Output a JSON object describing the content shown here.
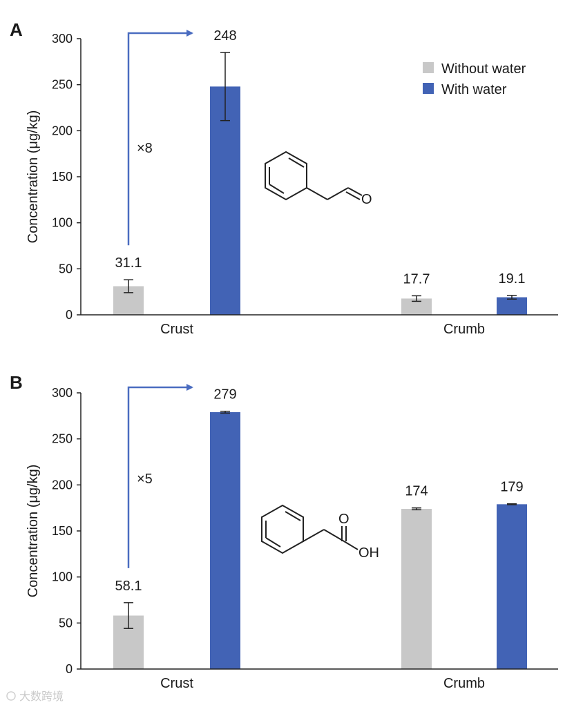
{
  "colors": {
    "without_water": "#c8c8c8",
    "with_water": "#4263b5",
    "arrow": "#4a6cc0",
    "axis": "#222222"
  },
  "legend": {
    "items": [
      {
        "label": "Without water",
        "color": "#c8c8c8"
      },
      {
        "label": "With water",
        "color": "#4263b5"
      }
    ]
  },
  "watermark": "大数跨境",
  "chart_data": [
    {
      "panel_label": "A",
      "type": "bar",
      "ylabel": "Concentration (μg/kg)",
      "ylim": [
        0,
        300
      ],
      "yticks": [
        0,
        50,
        100,
        150,
        200,
        250,
        300
      ],
      "categories": [
        "Crust",
        "Crumb"
      ],
      "series": [
        {
          "name": "Without water",
          "values": [
            31.1,
            17.7
          ],
          "errors": [
            7,
            3
          ],
          "labels": [
            "31.1",
            "17.7"
          ]
        },
        {
          "name": "With water",
          "values": [
            248,
            19.1
          ],
          "errors": [
            37,
            2
          ],
          "labels": [
            "248",
            "19.1"
          ]
        }
      ],
      "annotation": {
        "text": "×8",
        "from": "Crust.Without water",
        "to": "Crust.With water"
      },
      "molecule": "phenylacetaldehyde",
      "molecule_atoms": [
        "O"
      ],
      "legend_position": "top-right"
    },
    {
      "panel_label": "B",
      "type": "bar",
      "ylabel": "Concentration (μg/kg)",
      "ylim": [
        0,
        300
      ],
      "yticks": [
        0,
        50,
        100,
        150,
        200,
        250,
        300
      ],
      "categories": [
        "Crust",
        "Crumb"
      ],
      "series": [
        {
          "name": "Without water",
          "values": [
            58.1,
            174
          ],
          "errors": [
            14,
            1
          ],
          "labels": [
            "58.1",
            "174"
          ]
        },
        {
          "name": "With water",
          "values": [
            279,
            179
          ],
          "errors": [
            1,
            0.5
          ],
          "labels": [
            "279",
            "179"
          ]
        }
      ],
      "annotation": {
        "text": "×5",
        "from": "Crust.Without water",
        "to": "Crust.With water"
      },
      "molecule": "phenylacetic acid",
      "molecule_atoms": [
        "O",
        "OH"
      ]
    }
  ]
}
